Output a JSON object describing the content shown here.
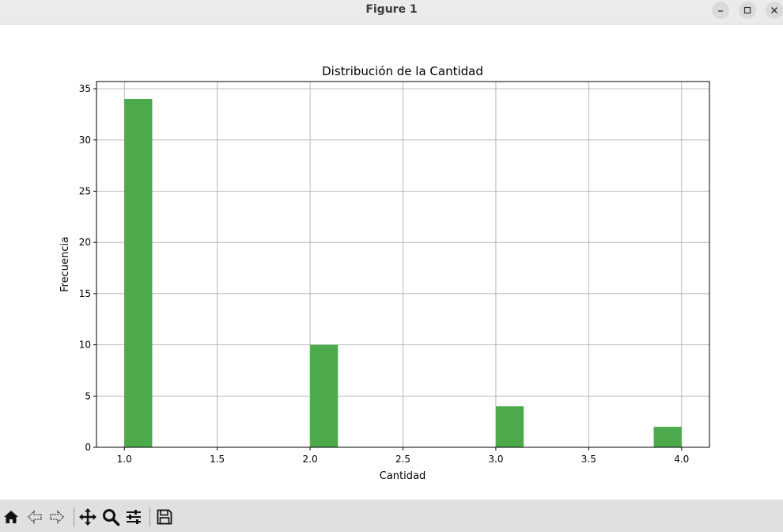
{
  "window": {
    "title": "Figure 1",
    "controls": [
      "minimize-icon",
      "maximize-icon",
      "close-icon"
    ]
  },
  "toolbar": {
    "buttons": [
      "home-icon",
      "back-arrow-icon",
      "forward-arrow-icon",
      "pan-icon",
      "zoom-icon",
      "configure-subplots-icon",
      "save-icon"
    ]
  },
  "chart_data": {
    "type": "bar",
    "title": "Distribución de la Cantidad",
    "xlabel": "Cantidad",
    "ylabel": "Frecuencia",
    "x": [
      1.0,
      2.0,
      3.0,
      4.0
    ],
    "values": [
      34,
      10,
      4,
      2
    ],
    "xlim": [
      0.85,
      4.15
    ],
    "ylim": [
      0,
      35.7
    ],
    "xticks": [
      "1.0",
      "1.5",
      "2.0",
      "2.5",
      "3.0",
      "3.5",
      "4.0"
    ],
    "yticks": [
      "0",
      "5",
      "10",
      "15",
      "20",
      "25",
      "30",
      "35"
    ],
    "grid": true,
    "color": "#4caa4c"
  }
}
